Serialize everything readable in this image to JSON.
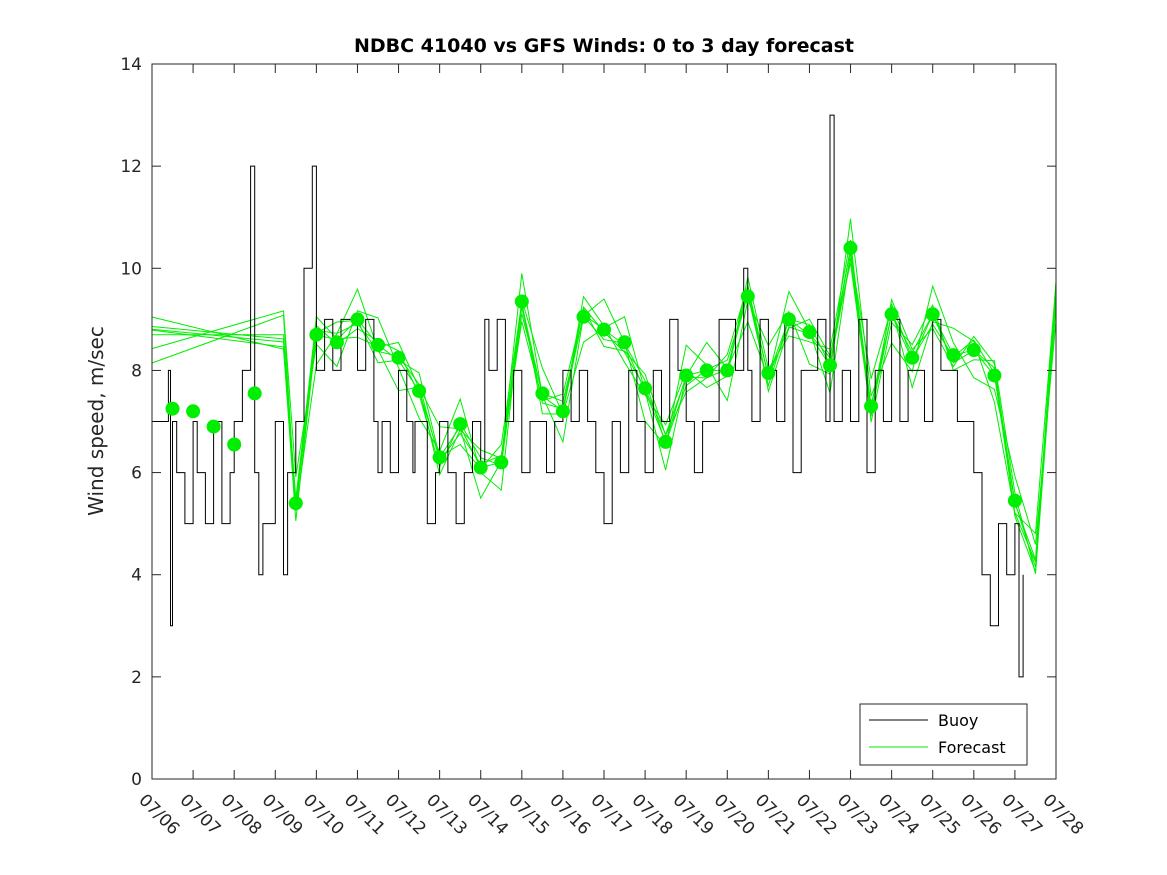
{
  "chart_data": {
    "type": "line",
    "title": "NDBC 41040 vs GFS Winds: 0 to 3 day forecast",
    "xlabel": "",
    "ylabel": "Wind speed, m/sec",
    "xlim": [
      0,
      22
    ],
    "ylim": [
      0,
      14
    ],
    "yticks": [
      0,
      2,
      4,
      6,
      8,
      10,
      12,
      14
    ],
    "xtick_labels": [
      "07/06",
      "07/07",
      "07/08",
      "07/09",
      "07/10",
      "07/11",
      "07/12",
      "07/13",
      "07/14",
      "07/15",
      "07/16",
      "07/17",
      "07/18",
      "07/19",
      "07/20",
      "07/21",
      "07/22",
      "07/23",
      "07/24",
      "07/25",
      "07/26",
      "07/27",
      "07/28"
    ],
    "grid": false,
    "legend": {
      "position": "bottom-right",
      "entries": [
        "Buoy",
        "Forecast"
      ]
    },
    "colors": {
      "buoy": "#000000",
      "forecast": "#00ee00",
      "axis": "#262626"
    },
    "series": [
      {
        "name": "Buoy",
        "x_unit": "days since 07/06",
        "x": [
          0.0,
          0.25,
          0.4,
          0.45,
          0.5,
          0.6,
          0.8,
          1.0,
          1.1,
          1.3,
          1.5,
          1.7,
          1.9,
          2.0,
          2.2,
          2.4,
          2.5,
          2.6,
          2.7,
          2.8,
          3.0,
          3.2,
          3.3,
          3.5,
          3.7,
          3.9,
          4.0,
          4.2,
          4.4,
          4.6,
          4.8,
          5.0,
          5.2,
          5.4,
          5.5,
          5.6,
          5.8,
          6.0,
          6.2,
          6.35,
          6.4,
          6.5,
          6.7,
          6.9,
          7.0,
          7.2,
          7.4,
          7.6,
          7.8,
          8.0,
          8.1,
          8.2,
          8.4,
          8.6,
          8.8,
          9.0,
          9.2,
          9.4,
          9.6,
          9.8,
          10.0,
          10.2,
          10.4,
          10.6,
          10.8,
          11.0,
          11.2,
          11.4,
          11.6,
          11.8,
          12.0,
          12.2,
          12.4,
          12.6,
          12.8,
          13.0,
          13.2,
          13.4,
          13.6,
          13.8,
          14.0,
          14.2,
          14.4,
          14.5,
          14.6,
          14.8,
          15.0,
          15.2,
          15.4,
          15.6,
          15.8,
          16.0,
          16.2,
          16.4,
          16.5,
          16.6,
          16.8,
          17.0,
          17.2,
          17.4,
          17.6,
          17.8,
          18.0,
          18.2,
          18.4,
          18.6,
          18.8,
          19.0,
          19.2,
          19.4,
          19.6,
          19.8,
          20.0,
          20.2,
          20.4,
          20.6,
          20.8,
          21.0,
          21.1,
          21.2
        ],
        "values": [
          7,
          7,
          8,
          3,
          7,
          6,
          5,
          7,
          6,
          5,
          7,
          5,
          6,
          7,
          8,
          12,
          6,
          4,
          5,
          5,
          7,
          4,
          6,
          7,
          10,
          12,
          8,
          9,
          8,
          9,
          9,
          8,
          9,
          7,
          6,
          7,
          6,
          8,
          7,
          6,
          7,
          7,
          5,
          6,
          7,
          6,
          5,
          6,
          7,
          6,
          9,
          8,
          9,
          7,
          8,
          6,
          7,
          7,
          6,
          7,
          8,
          7,
          8,
          7,
          6,
          5,
          7,
          6,
          8,
          7,
          6,
          8,
          7,
          9,
          8,
          7,
          6,
          7,
          7,
          9,
          9,
          8,
          10,
          8,
          7,
          9,
          8,
          7,
          9,
          6,
          8,
          8,
          9,
          7,
          13,
          7,
          8,
          7,
          9,
          6,
          8,
          7,
          9,
          7,
          8,
          8,
          7,
          9,
          8,
          8,
          7,
          7,
          6,
          4,
          3,
          5,
          4,
          5,
          2,
          4
        ]
      },
      {
        "name": "Forecast",
        "x_unit": "days since 07/06",
        "x": [
          0.0,
          3.2,
          3.5,
          4.0,
          4.5,
          5.0,
          5.5,
          6.0,
          6.5,
          7.0,
          7.5,
          8.0,
          8.5,
          9.0,
          9.5,
          10.0,
          10.5,
          11.0,
          11.5,
          12.0,
          12.5,
          13.0,
          13.5,
          14.0,
          14.5,
          15.0,
          15.5,
          16.0,
          16.5,
          17.0,
          17.5,
          18.0,
          18.5,
          19.0,
          19.5,
          20.0,
          20.5,
          21.0,
          21.5,
          22.0
        ],
        "values": [
          8.7,
          8.7,
          5.4,
          8.7,
          8.6,
          9.0,
          8.5,
          8.2,
          7.6,
          6.3,
          6.9,
          6.1,
          6.2,
          9.3,
          7.5,
          7.2,
          9.1,
          8.8,
          8.5,
          7.6,
          6.6,
          7.9,
          8.0,
          8.0,
          9.5,
          7.9,
          9.0,
          8.7,
          8.1,
          10.4,
          7.3,
          9.1,
          8.2,
          9.1,
          8.3,
          8.4,
          7.9,
          5.4,
          4.3,
          9.5
        ]
      },
      {
        "name": "Forecast (daily points)",
        "x_unit": "days since 07/06",
        "x": [
          0.5,
          1.0,
          1.5,
          2.0,
          2.5,
          3.5,
          4.0,
          4.5,
          5.0,
          5.5,
          6.0,
          6.5,
          7.0,
          7.5,
          8.0,
          8.5,
          9.0,
          9.5,
          10.0,
          10.5,
          11.0,
          11.5,
          12.0,
          12.5,
          13.0,
          13.5,
          14.0,
          14.5,
          15.0,
          15.5,
          16.0,
          16.5,
          17.0,
          17.5,
          18.0,
          18.5,
          19.0,
          19.5,
          20.0,
          20.5,
          21.0
        ],
        "values": [
          7.25,
          7.2,
          6.9,
          6.55,
          7.55,
          5.4,
          8.7,
          8.55,
          9.0,
          8.5,
          8.25,
          7.6,
          6.3,
          6.95,
          6.1,
          6.2,
          9.35,
          7.55,
          7.2,
          9.05,
          8.8,
          8.55,
          7.65,
          6.6,
          7.9,
          8.0,
          8.0,
          9.45,
          7.95,
          9.0,
          8.75,
          8.1,
          10.4,
          7.3,
          9.1,
          8.25,
          9.1,
          8.3,
          8.4,
          7.9,
          5.45
        ]
      }
    ]
  }
}
